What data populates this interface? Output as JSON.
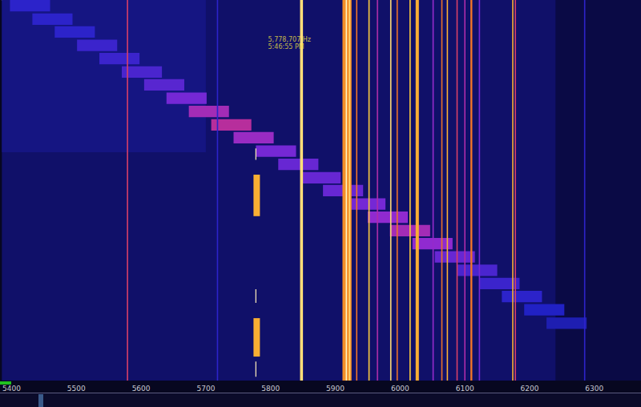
{
  "chart_data": {
    "type": "heatmap",
    "annotations": [
      {
        "text": "5,778,707 Hz",
        "x": 5778.707,
        "y": 10.5
      },
      {
        "text": "5:46:55 PM",
        "x": 5778.707,
        "y": 12.4
      }
    ],
    "xlim": [
      5385,
      6372
    ],
    "xticks": [
      5400,
      5500,
      5600,
      5700,
      5800,
      5900,
      6000,
      6100,
      6200,
      6300
    ],
    "ylim": [
      0,
      100
    ],
    "tick_labels": "x",
    "grid": false,
    "value_range": [
      0,
      100
    ],
    "cells": [
      [
        5385,
        6372,
        0,
        100,
        14
      ],
      [
        5385,
        5700,
        0,
        40,
        18
      ],
      [
        6240,
        6372,
        0,
        100,
        6
      ],
      [
        5397.5,
        5459.5,
        0,
        3,
        30
      ],
      [
        5432.1,
        5494.1,
        3.5,
        6.5,
        30
      ],
      [
        5466.6,
        5528.6,
        6.9,
        9.9,
        30
      ],
      [
        5501.1,
        5563.1,
        10.4,
        13.4,
        32
      ],
      [
        5535.6,
        5597.6,
        13.9,
        16.9,
        32
      ],
      [
        5570.2,
        5632.2,
        17.4,
        20.4,
        34
      ],
      [
        5604.7,
        5666.7,
        20.8,
        23.8,
        36
      ],
      [
        5639.2,
        5701.2,
        24.3,
        27.3,
        40
      ],
      [
        5673.7,
        5735.7,
        27.8,
        30.8,
        48
      ],
      [
        5708.3,
        5770.3,
        31.3,
        34.3,
        52
      ],
      [
        5742.8,
        5804.8,
        34.7,
        37.7,
        46
      ],
      [
        5777.3,
        5839.3,
        38.2,
        41.2,
        40
      ],
      [
        5811.8,
        5873.8,
        41.7,
        44.7,
        38
      ],
      [
        5846.3,
        5908.3,
        45.2,
        48.2,
        38
      ],
      [
        5880.9,
        5942.9,
        48.6,
        51.6,
        38
      ],
      [
        5915.4,
        5977.4,
        52.1,
        55.1,
        40
      ],
      [
        5949.9,
        6011.9,
        55.6,
        58.6,
        44
      ],
      [
        5984.4,
        6046.4,
        59.1,
        62.1,
        48
      ],
      [
        6019.0,
        6081.0,
        62.5,
        65.5,
        44
      ],
      [
        6053.5,
        6115.5,
        66.0,
        69.0,
        38
      ],
      [
        6088.0,
        6150.0,
        69.5,
        72.5,
        34
      ],
      [
        6122.5,
        6184.5,
        73.0,
        76.0,
        32
      ],
      [
        6157.1,
        6219.1,
        76.4,
        79.4,
        30
      ],
      [
        6191.6,
        6253.6,
        79.9,
        82.9,
        28
      ],
      [
        6226.1,
        6288.1,
        83.4,
        86.4,
        25
      ],
      [
        5578,
        5580,
        0,
        100,
        60
      ],
      [
        5717,
        5719,
        0,
        100,
        30
      ],
      [
        5845.5,
        5850,
        0,
        100,
        90
      ],
      [
        5911,
        5925,
        0,
        100,
        75
      ],
      [
        5916,
        5918,
        0,
        100,
        95
      ],
      [
        5921,
        5923,
        0,
        100,
        90
      ],
      [
        5932,
        5934,
        0,
        100,
        70
      ],
      [
        5951,
        5953,
        0,
        100,
        85
      ],
      [
        5964,
        5966,
        0,
        100,
        50
      ],
      [
        5984.6,
        5986.6,
        0,
        100,
        90
      ],
      [
        5994.5,
        5996.5,
        0,
        100,
        70
      ],
      [
        6014.4,
        6016.4,
        0,
        100,
        85
      ],
      [
        6024,
        6029,
        0,
        100,
        80
      ],
      [
        6050,
        6052,
        0,
        100,
        45
      ],
      [
        6063.5,
        6065.5,
        0,
        100,
        70
      ],
      [
        6072,
        6074,
        0,
        100,
        80
      ],
      [
        6087,
        6089,
        0,
        100,
        60
      ],
      [
        6099,
        6101,
        0,
        100,
        50
      ],
      [
        6108.5,
        6111.5,
        0,
        100,
        70
      ],
      [
        6121.5,
        6123.5,
        0,
        100,
        40
      ],
      [
        6173,
        6175,
        0,
        100,
        80
      ],
      [
        6177,
        6179,
        0,
        100,
        60
      ],
      [
        6284,
        6286,
        0,
        100,
        30
      ],
      [
        5776.5,
        5778,
        39,
        42,
        95
      ],
      [
        5776.5,
        5778,
        76,
        79.6,
        95
      ],
      [
        5776.5,
        5778,
        95,
        99,
        95
      ],
      [
        5773.6,
        5783.5,
        45.9,
        56.8,
        80
      ],
      [
        5773.6,
        5783.5,
        83.6,
        93.7,
        80
      ]
    ]
  }
}
